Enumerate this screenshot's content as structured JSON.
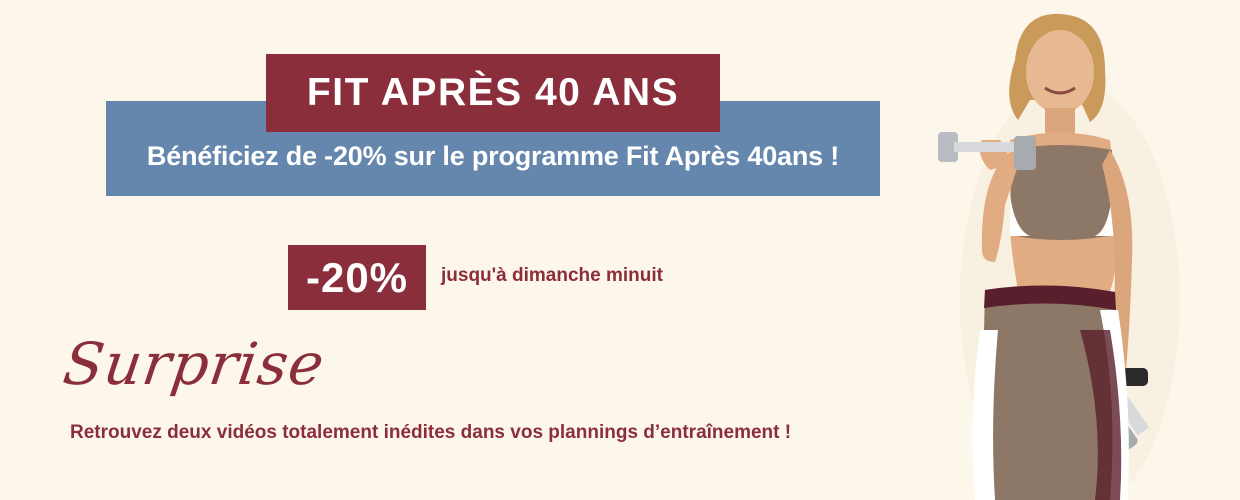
{
  "banner": {
    "title": "FIT APRÈS 40 ANS",
    "subtitle": "Bénéficiez de -20% sur le programme Fit Après 40ans !",
    "discount": "-20%",
    "deadline": "jusqu'à dimanche minuit",
    "surprise_heading": "Surprise",
    "surprise_text": "Retrouvez deux vidéos totalement inédites dans vos plannings d’entraînement !"
  },
  "colors": {
    "background": "#fdf6ea",
    "brand_red": "#8b2e3c",
    "band_blue": "#6587ad"
  },
  "image": {
    "icon": "woman-with-dumbbell-photo"
  }
}
